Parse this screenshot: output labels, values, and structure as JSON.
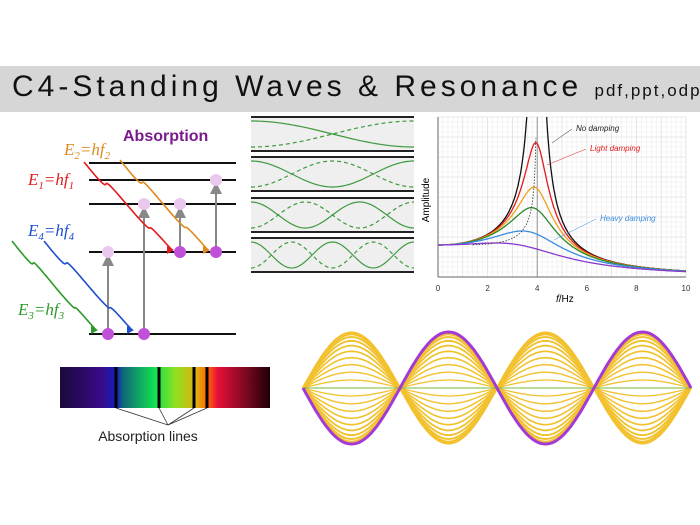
{
  "header": {
    "title": "C4-Standing Waves & Resonance",
    "formats": "pdf,ppt,odp"
  },
  "absorption_diagram": {
    "title": "Absorption",
    "labels": [
      {
        "E": "E",
        "sub": "2",
        "hf": "hf",
        "color": "#e08a1e"
      },
      {
        "E": "E",
        "sub": "1",
        "hf": "hf",
        "color": "#e21b1b"
      },
      {
        "E": "E",
        "sub": "4",
        "hf": "hf",
        "color": "#1f4fd0"
      },
      {
        "E": "E",
        "sub": "3",
        "hf": "hf",
        "color": "#2a9a2a"
      }
    ],
    "title_color": "#7a1a8c"
  },
  "spectrum": {
    "caption": "Absorption lines"
  },
  "resonance": {
    "ylabel": "Amplitude",
    "xlabel_italic": "f",
    "xlabel_unit": "/Hz",
    "xticks": [
      "0",
      "2",
      "4",
      "6",
      "8",
      "10"
    ],
    "annotations": [
      {
        "text": "No damping",
        "color": "#222222"
      },
      {
        "text": "Light damping",
        "color": "#e21b1b"
      },
      {
        "text": "Heavy damping",
        "color": "#3a8ee0"
      }
    ],
    "curve_colors": [
      "#111111",
      "#e21b1b",
      "#f0a020",
      "#2a8a2a",
      "#3a8ee0",
      "#8a3ad0"
    ]
  },
  "standing_wave_colors": {
    "envelope": "#a43ad6",
    "intermediate": "#f2c12e",
    "node_line": "#7ab83a"
  },
  "pipe_wave_color": "#3f9a3f"
}
